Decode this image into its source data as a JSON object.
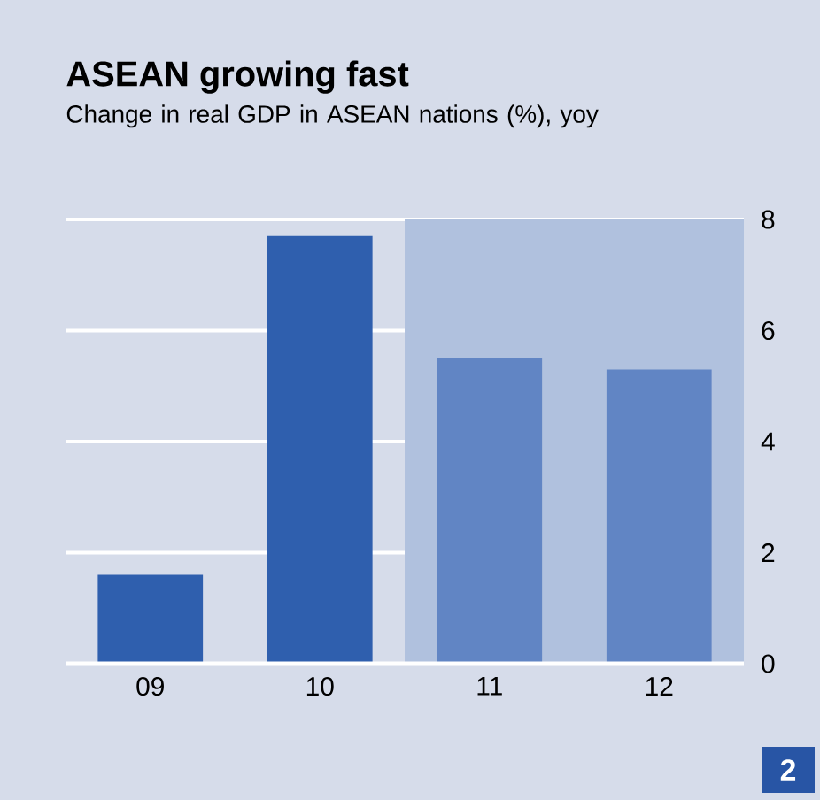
{
  "chart_data": {
    "type": "bar",
    "title": "ASEAN growing fast",
    "subtitle": "Change in real GDP in ASEAN nations (%), yoy",
    "categories": [
      "09",
      "10",
      "11",
      "12"
    ],
    "values": [
      1.6,
      7.7,
      5.5,
      5.3
    ],
    "colors": [
      "#2f5fae",
      "#2f5fae",
      "#6185c4",
      "#6185c4"
    ],
    "ylim": [
      0,
      8
    ],
    "yticks": [
      0,
      2,
      4,
      6,
      8
    ],
    "grid": "y",
    "bands": [
      {
        "axis": "x",
        "from": "11",
        "to": "12",
        "color": "#b0c1de"
      }
    ],
    "annotations": [
      "2"
    ]
  }
}
